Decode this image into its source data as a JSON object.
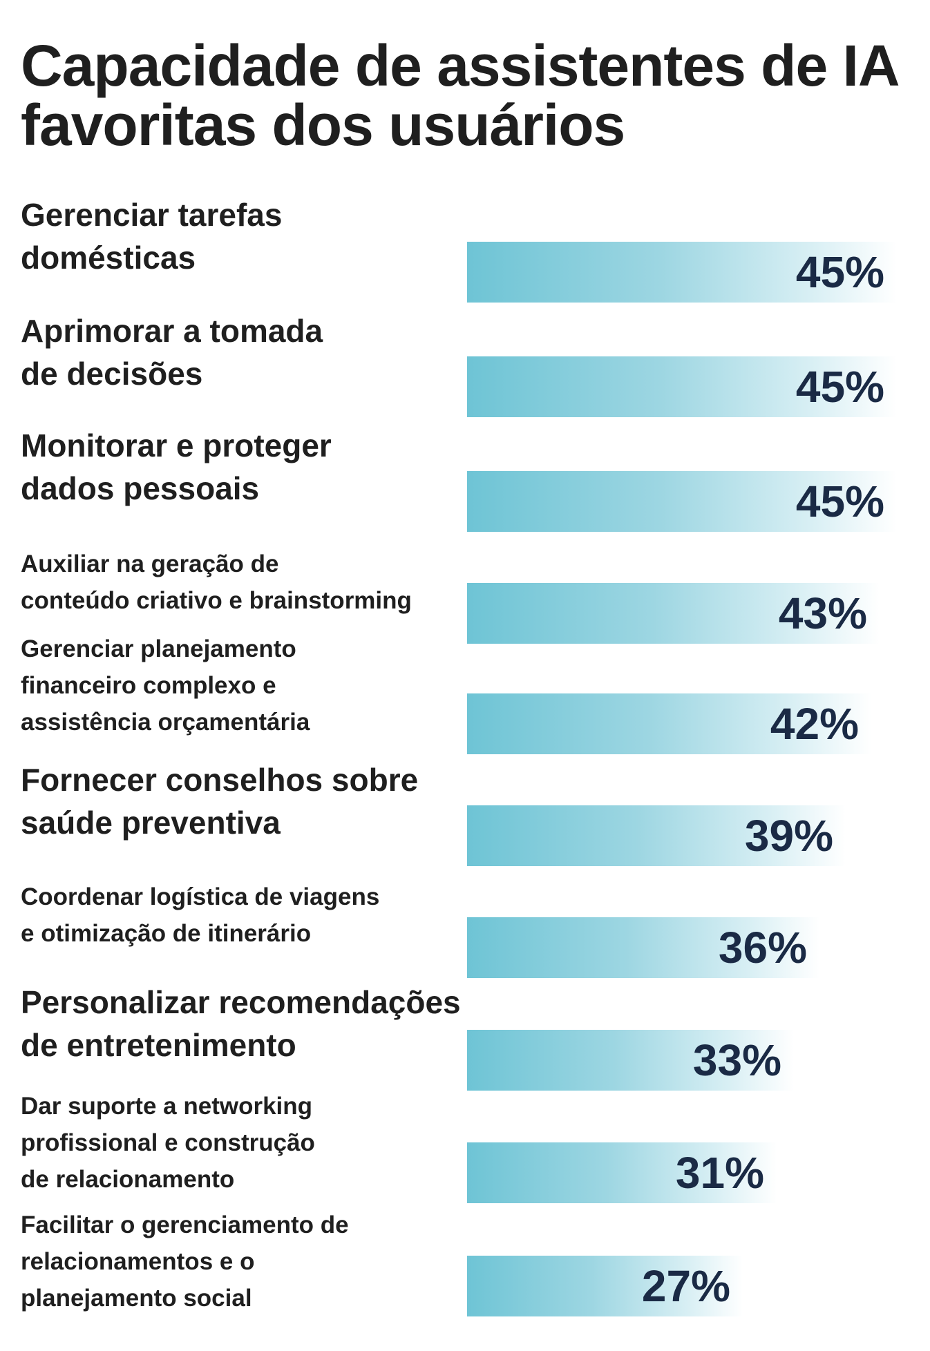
{
  "chart_data": {
    "type": "bar",
    "orientation": "horizontal",
    "title": "Capacidade de assistentes de IA favoritas dos usuários",
    "unit": "%",
    "colors": {
      "bar_start": "#6ec4d5",
      "bar_end": "#ffffff",
      "value_text": "#1a2a45",
      "label_text": "#1f1f1f"
    },
    "categories": [
      "Gerenciar tarefas\ndomésticas",
      "Aprimorar a tomada\nde decisões",
      "Monitorar e proteger\ndados pessoais",
      "Auxiliar na geração de\nconteúdo criativo e brainstorming",
      "Gerenciar planejamento\nfinanceiro complexo e\nassistência orçamentária",
      "Fornecer conselhos sobre\nsaúde preventiva",
      "Coordenar logística de viagens\ne otimização de itinerário",
      "Personalizar recomendações\nde entretenimento",
      "Dar suporte a networking\nprofissional e construção\nde relacionamento",
      "Facilitar o gerenciamento de\nrelacionamentos e o\nplanejamento social"
    ],
    "values": [
      45,
      45,
      45,
      43,
      42,
      39,
      36,
      33,
      31,
      27
    ],
    "value_labels": [
      "45%",
      "45%",
      "45%",
      "43%",
      "42%",
      "39%",
      "36%",
      "33%",
      "31%",
      "27%"
    ]
  }
}
